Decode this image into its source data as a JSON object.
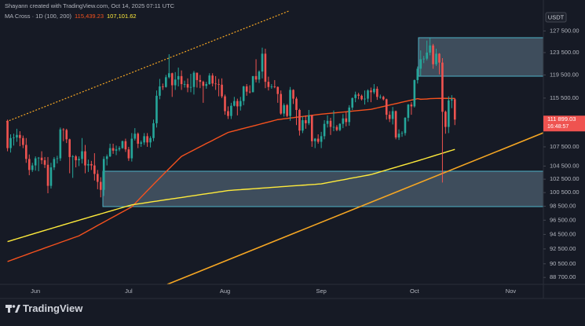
{
  "chart_data": {
    "type": "candlestick",
    "attribution": "Shayann created with TradingView.com, Oct 14, 2025 07:11 UTC",
    "indicator_label": "MA Cross · 1D (100, 200)",
    "indicator_values": [
      "115,439.23",
      "107,101.62"
    ],
    "currency": "USDT",
    "price_label": "111 899.03",
    "countdown": "16:48:57",
    "branding": "TradingView",
    "log_scale": true,
    "grid": false,
    "up_color": "#26a69a",
    "down_color": "#ef5350",
    "ylim": [
      87800,
      133440
    ],
    "yticks": [
      {
        "value": 127500,
        "label": "127 500.00"
      },
      {
        "value": 123500,
        "label": "123 500.00"
      },
      {
        "value": 119500,
        "label": "119 500.00"
      },
      {
        "value": 115500,
        "label": "115 500.00"
      },
      {
        "value": 107500,
        "label": "107 500.00"
      },
      {
        "value": 104500,
        "label": "104 500.00"
      },
      {
        "value": 102500,
        "label": "102 500.00"
      },
      {
        "value": 100500,
        "label": "100 500.00"
      },
      {
        "value": 98500,
        "label": "98 500.00"
      },
      {
        "value": 96500,
        "label": "96 500.00"
      },
      {
        "value": 94500,
        "label": "94 500.00"
      },
      {
        "value": 92500,
        "label": "92 500.00"
      },
      {
        "value": 90500,
        "label": "90 500.00"
      },
      {
        "value": 88700,
        "label": "88 700.00"
      }
    ],
    "categories": [
      null,
      null,
      null,
      null,
      null,
      null,
      null,
      null,
      null,
      "Jun",
      null,
      null,
      null,
      null,
      null,
      null,
      null,
      null,
      null,
      null,
      null,
      null,
      null,
      null,
      null,
      null,
      null,
      null,
      null,
      null,
      null,
      null,
      null,
      null,
      null,
      null,
      null,
      null,
      null,
      "Jul",
      null,
      null,
      null,
      null,
      null,
      null,
      null,
      null,
      null,
      null,
      null,
      null,
      null,
      null,
      null,
      null,
      null,
      null,
      null,
      null,
      null,
      null,
      null,
      null,
      null,
      null,
      null,
      null,
      null,
      null,
      "Aug",
      null,
      null,
      null,
      null,
      null,
      null,
      null,
      null,
      null,
      null,
      null,
      null,
      null,
      null,
      null,
      null,
      null,
      null,
      null,
      null,
      null,
      null,
      null,
      null,
      null,
      null,
      null,
      null,
      null,
      null,
      "Sep",
      null,
      null,
      null,
      null,
      null,
      null,
      null,
      null,
      null,
      null,
      null,
      null,
      null,
      null,
      null,
      null,
      null,
      null,
      null,
      null,
      null,
      null,
      null,
      null,
      null,
      null,
      null,
      null,
      null,
      "Oct",
      null,
      null,
      null,
      null,
      null,
      null,
      null,
      null,
      null,
      null,
      null,
      null,
      null,
      null,
      null,
      null,
      null,
      null,
      null,
      null,
      null,
      null,
      null,
      null,
      null,
      null,
      null,
      null,
      null,
      null,
      "Nov",
      null,
      null,
      null,
      null,
      null,
      null,
      null,
      null,
      null,
      null
    ],
    "open": [
      111700,
      107300,
      108900,
      109000,
      109400,
      108900,
      107800,
      105600,
      103900,
      104600,
      105700,
      105800,
      105400,
      104700,
      101500,
      104300,
      105600,
      105700,
      110300,
      110200,
      108700,
      105900,
      106000,
      105400,
      105600,
      106800,
      104600,
      104800,
      104600,
      103300,
      102100,
      100900,
      105600,
      106000,
      107300,
      106900,
      107100,
      107300,
      108400,
      107100,
      105700,
      108800,
      109600,
      108000,
      108200,
      109200,
      108200,
      108900,
      111300,
      115900,
      117500,
      117400,
      119100,
      119800,
      117700,
      118700,
      119300,
      117900,
      117900,
      117300,
      117400,
      119900,
      118600,
      118300,
      117600,
      117900,
      119400,
      118000,
      117900,
      117800,
      115800,
      113300,
      112500,
      114200,
      115000,
      114100,
      115000,
      117500,
      116600,
      116500,
      119300,
      118700,
      120100,
      123300,
      118300,
      117400,
      117500,
      117400,
      116200,
      112900,
      114300,
      112500,
      116900,
      115400,
      113500,
      110100,
      111800,
      111300,
      112600,
      108400,
      108800,
      108300,
      109200,
      111200,
      111700,
      110700,
      110700,
      110200,
      111200,
      112100,
      111500,
      113900,
      115500,
      116100,
      115900,
      115300,
      115400,
      116800,
      116500,
      117100,
      115700,
      115700,
      115300,
      112700,
      112000,
      113300,
      109000,
      109600,
      109700,
      112200,
      114400,
      114100,
      118600,
      120600,
      122300,
      122400,
      123500,
      124800,
      121400,
      123300,
      121700,
      113200,
      110700,
      115100,
      115300,
      null,
      null,
      null,
      null,
      null,
      null,
      null,
      null,
      null,
      null,
      null,
      null,
      null,
      null,
      null,
      null,
      null,
      null,
      null,
      null,
      null,
      null,
      null,
      null,
      null,
      null,
      null,
      null
    ],
    "high": [
      111900,
      109500,
      109600,
      110400,
      110000,
      109300,
      108900,
      106300,
      105000,
      106000,
      105900,
      106800,
      105900,
      105900,
      105000,
      105900,
      106100,
      110600,
      110500,
      110400,
      108800,
      106200,
      106200,
      106000,
      108900,
      107800,
      105500,
      105300,
      106500,
      103900,
      102800,
      106000,
      106300,
      108000,
      108000,
      107700,
      107600,
      108500,
      108800,
      107500,
      109700,
      110500,
      109800,
      108500,
      109700,
      109700,
      109200,
      111900,
      116800,
      118800,
      118000,
      119500,
      123200,
      119900,
      120000,
      120800,
      120300,
      118500,
      118900,
      119700,
      120200,
      119900,
      119500,
      118500,
      118300,
      119800,
      119800,
      119300,
      118800,
      118900,
      116100,
      114100,
      114700,
      115700,
      115400,
      115700,
      117600,
      117900,
      117700,
      119300,
      122300,
      120300,
      124400,
      124200,
      119200,
      117900,
      118600,
      117500,
      116800,
      114600,
      114500,
      117400,
      117000,
      115700,
      113700,
      112400,
      112600,
      113500,
      112700,
      108900,
      109500,
      109900,
      111800,
      112600,
      112200,
      113400,
      111000,
      111300,
      112800,
      113200,
      114300,
      115600,
      116600,
      116400,
      116100,
      116800,
      117000,
      117300,
      117900,
      117500,
      116100,
      115900,
      115400,
      113300,
      114000,
      113400,
      110300,
      110000,
      112300,
      114500,
      114800,
      118700,
      121000,
      123900,
      122900,
      125700,
      126200,
      125100,
      124200,
      123400,
      122500,
      113400,
      115800,
      116000,
      115500,
      null,
      null,
      null,
      null,
      null,
      null,
      null,
      null,
      null,
      null,
      null,
      null,
      null,
      null,
      null,
      null,
      null,
      null,
      null,
      null,
      null,
      null,
      null,
      null,
      null,
      null,
      null,
      null
    ],
    "low": [
      106800,
      106600,
      107700,
      108300,
      107600,
      107300,
      105000,
      103100,
      103600,
      103800,
      103700,
      104800,
      104200,
      100400,
      101100,
      103900,
      104900,
      105300,
      108400,
      108100,
      103400,
      102700,
      104300,
      104500,
      104900,
      103400,
      103600,
      103900,
      102300,
      101000,
      99800,
      100000,
      104600,
      105900,
      106400,
      106200,
      106800,
      107200,
      106700,
      105300,
      105200,
      108500,
      107300,
      107500,
      107800,
      107500,
      107400,
      108400,
      110600,
      115300,
      116900,
      117300,
      118900,
      115700,
      116900,
      117500,
      116900,
      117300,
      116500,
      116500,
      116100,
      117300,
      117200,
      114700,
      117100,
      117800,
      117500,
      116900,
      115800,
      115500,
      112700,
      112000,
      112000,
      114100,
      112600,
      113400,
      114300,
      115900,
      116300,
      116500,
      118200,
      118100,
      118900,
      117200,
      116800,
      117100,
      117200,
      114700,
      112700,
      112400,
      112300,
      111700,
      114500,
      111000,
      109300,
      109700,
      110400,
      111000,
      107500,
      107300,
      108000,
      107300,
      108700,
      110600,
      109400,
      110000,
      110000,
      110000,
      110500,
      110800,
      110900,
      113500,
      114800,
      115300,
      115100,
      114400,
      114800,
      114800,
      116200,
      115200,
      115400,
      115100,
      111900,
      111500,
      111100,
      108700,
      108600,
      109100,
      109300,
      111600,
      112700,
      113900,
      118000,
      119300,
      121600,
      122100,
      123000,
      120600,
      121100,
      119600,
      102000,
      109600,
      109700,
      113800,
      111000,
      null,
      null,
      null,
      null,
      null,
      null,
      null,
      null,
      null,
      null,
      null,
      null,
      null,
      null,
      null,
      null,
      null,
      null,
      null,
      null,
      null,
      null,
      null,
      null,
      null,
      null,
      null,
      null
    ],
    "close": [
      107300,
      108900,
      109000,
      109400,
      108900,
      107800,
      105600,
      103900,
      104600,
      105700,
      105800,
      105400,
      104700,
      101500,
      104300,
      105600,
      105700,
      110300,
      110200,
      108700,
      105900,
      106000,
      105400,
      105600,
      106800,
      104600,
      104800,
      104600,
      103300,
      102100,
      100900,
      105600,
      106000,
      107300,
      106900,
      107100,
      107300,
      108400,
      107100,
      105700,
      108800,
      109600,
      108000,
      108200,
      109200,
      108200,
      108900,
      111300,
      115900,
      117500,
      117400,
      119100,
      119800,
      117700,
      118700,
      119300,
      117900,
      117900,
      117300,
      117400,
      119900,
      118600,
      118300,
      117600,
      117900,
      119400,
      118000,
      117900,
      117800,
      115800,
      113300,
      112500,
      114200,
      115000,
      114100,
      115000,
      117500,
      116600,
      116500,
      119300,
      118700,
      120100,
      123300,
      118300,
      117400,
      117500,
      117400,
      116200,
      112900,
      114300,
      112500,
      116900,
      115400,
      113500,
      110100,
      111800,
      111300,
      112600,
      108400,
      108800,
      108300,
      109200,
      111200,
      111700,
      110700,
      110700,
      110200,
      111200,
      112100,
      111500,
      113900,
      115500,
      116100,
      115900,
      115300,
      115400,
      116800,
      116500,
      117100,
      115700,
      115700,
      115300,
      112700,
      112000,
      113300,
      109000,
      109600,
      109700,
      112200,
      114400,
      114100,
      118600,
      120600,
      122300,
      122400,
      123500,
      124800,
      121400,
      123300,
      121700,
      113200,
      110700,
      115100,
      115300,
      111899.03,
      null,
      null,
      null,
      null,
      null,
      null,
      null,
      null,
      null,
      null,
      null,
      null,
      null,
      null,
      null,
      null,
      null,
      null,
      null,
      null,
      null,
      null,
      null,
      null,
      null,
      null,
      null,
      null
    ],
    "overlays": [
      {
        "color": "#f4511e",
        "values": [
          90800,
          90950,
          91100,
          91260,
          91410,
          91560,
          91710,
          91870,
          92020,
          92170,
          92320,
          92470,
          92630,
          92780,
          92930,
          93080,
          93230,
          93390,
          93540,
          93690,
          93840,
          94000,
          94150,
          94300,
          94540,
          94780,
          95020,
          95260,
          95500,
          95750,
          95990,
          96230,
          96470,
          96710,
          96950,
          97190,
          97440,
          97680,
          97920,
          98160,
          98400,
          98880,
          99350,
          99830,
          100300,
          100780,
          101250,
          101730,
          102200,
          102680,
          103150,
          103630,
          104100,
          104580,
          105050,
          105530,
          106000,
          106250,
          106510,
          106760,
          107010,
          107270,
          107520,
          107770,
          108030,
          108280,
          108530,
          108790,
          109040,
          109290,
          109550,
          109800,
          109930,
          110060,
          110190,
          110330,
          110460,
          110590,
          110720,
          110850,
          110980,
          111110,
          111240,
          111380,
          111510,
          111640,
          111770,
          111900,
          111960,
          112030,
          112090,
          112160,
          112220,
          112290,
          112350,
          112410,
          112480,
          112540,
          112610,
          112670,
          112740,
          112800,
          112850,
          112900,
          112950,
          113000,
          113050,
          113100,
          113150,
          113200,
          113250,
          113300,
          113350,
          113400,
          113450,
          113500,
          113550,
          113600,
          113720,
          113840,
          113960,
          114080,
          114200,
          114320,
          114440,
          114560,
          114680,
          114800,
          114920,
          115040,
          115160,
          115280,
          115400,
          115300,
          115320,
          115350,
          115400,
          115420,
          115440,
          115450,
          115460,
          115450,
          115440,
          115440,
          115439.23,
          null,
          null,
          null,
          null,
          null,
          null,
          null,
          null,
          null,
          null,
          null,
          null,
          null,
          null,
          null,
          null,
          null,
          null,
          null,
          null,
          null,
          null,
          null,
          null,
          null,
          null,
          null,
          null
        ]
      },
      {
        "color": "#ffeb3b",
        "values": [
          93500,
          93630,
          93760,
          93890,
          94020,
          94150,
          94280,
          94410,
          94540,
          94670,
          94800,
          94930,
          95060,
          95190,
          95320,
          95450,
          95580,
          95710,
          95840,
          95970,
          96100,
          96230,
          96360,
          96490,
          96620,
          96750,
          96880,
          97010,
          97140,
          97270,
          97400,
          97530,
          97660,
          97790,
          97920,
          98050,
          98180,
          98310,
          98440,
          98570,
          98700,
          98770,
          98840,
          98900,
          98970,
          99040,
          99110,
          99180,
          99240,
          99310,
          99380,
          99450,
          99510,
          99580,
          99650,
          99720,
          99780,
          99850,
          99920,
          99990,
          100050,
          100120,
          100190,
          100260,
          100330,
          100390,
          100460,
          100530,
          100600,
          100660,
          100730,
          100800,
          100830,
          100870,
          100900,
          100930,
          100970,
          101000,
          101030,
          101070,
          101100,
          101130,
          101170,
          101200,
          101230,
          101270,
          101300,
          101330,
          101370,
          101400,
          101430,
          101470,
          101500,
          101530,
          101570,
          101600,
          101630,
          101670,
          101700,
          101730,
          101770,
          101800,
          101890,
          101980,
          102060,
          102150,
          102240,
          102330,
          102410,
          102500,
          102590,
          102680,
          102760,
          102850,
          102940,
          103030,
          103110,
          103200,
          103340,
          103480,
          103620,
          103760,
          103900,
          104040,
          104180,
          104320,
          104460,
          104600,
          104740,
          104880,
          105020,
          105160,
          105300,
          105450,
          105600,
          105750,
          105900,
          106050,
          106200,
          106350,
          106500,
          106650,
          106800,
          106950,
          107101.62,
          null,
          null,
          null,
          null,
          null,
          null,
          null,
          null,
          null,
          null,
          null,
          null,
          null,
          null,
          null,
          null,
          null,
          null,
          null,
          null,
          null,
          null,
          null,
          null,
          null,
          null,
          null,
          null
        ]
      }
    ]
  }
}
